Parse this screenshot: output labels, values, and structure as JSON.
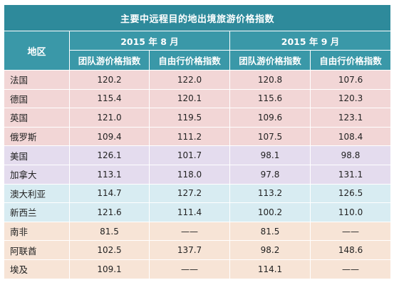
{
  "title": "主要中远程目的地出境旅游价格指数",
  "region_header": "地区",
  "periods": [
    {
      "label": "2015 年 8 月"
    },
    {
      "label": "2015 年 9 月"
    }
  ],
  "subheaders": [
    "团队游价格指数",
    "自由行价格指数",
    "团队游价格指数",
    "自由行价格指数"
  ],
  "group_colors": [
    "#f2d6d6",
    "#e4dcee",
    "#d8ecf2",
    "#f7e4d6"
  ],
  "rows": [
    {
      "region": "法国",
      "group": 0,
      "v": [
        "120.2",
        "122.0",
        "120.8",
        "107.6"
      ]
    },
    {
      "region": "德国",
      "group": 0,
      "v": [
        "115.4",
        "120.1",
        "115.6",
        "120.3"
      ]
    },
    {
      "region": "英国",
      "group": 0,
      "v": [
        "121.0",
        "119.5",
        "109.6",
        "123.1"
      ]
    },
    {
      "region": "俄罗斯",
      "group": 0,
      "v": [
        "109.4",
        "111.2",
        "107.5",
        "108.4"
      ]
    },
    {
      "region": "美国",
      "group": 1,
      "v": [
        "126.1",
        "101.7",
        "98.1",
        "98.8"
      ]
    },
    {
      "region": "加拿大",
      "group": 1,
      "v": [
        "113.1",
        "118.0",
        "97.8",
        "131.1"
      ]
    },
    {
      "region": "澳大利亚",
      "group": 2,
      "v": [
        "114.7",
        "127.2",
        "113.2",
        "126.5"
      ]
    },
    {
      "region": "新西兰",
      "group": 2,
      "v": [
        "121.6",
        "111.4",
        "100.2",
        "110.0"
      ]
    },
    {
      "region": "南非",
      "group": 3,
      "v": [
        "81.5",
        "——",
        "81.5",
        "——"
      ]
    },
    {
      "region": "阿联酋",
      "group": 3,
      "v": [
        "102.5",
        "137.7",
        "98.2",
        "148.6"
      ]
    },
    {
      "region": "埃及",
      "group": 3,
      "v": [
        "109.1",
        "——",
        "114.1",
        "——"
      ]
    }
  ],
  "chart_data": {
    "type": "table",
    "title": "主要中远程目的地出境旅游价格指数",
    "columns": [
      "地区",
      "2015 年 8 月 团队游价格指数",
      "2015 年 8 月 自由行价格指数",
      "2015 年 9 月 团队游价格指数",
      "2015 年 9 月 自由行价格指数"
    ],
    "rows": [
      [
        "法国",
        120.2,
        122.0,
        120.8,
        107.6
      ],
      [
        "德国",
        115.4,
        120.1,
        115.6,
        120.3
      ],
      [
        "英国",
        121.0,
        119.5,
        109.6,
        123.1
      ],
      [
        "俄罗斯",
        109.4,
        111.2,
        107.5,
        108.4
      ],
      [
        "美国",
        126.1,
        101.7,
        98.1,
        98.8
      ],
      [
        "加拿大",
        113.1,
        118.0,
        97.8,
        131.1
      ],
      [
        "澳大利亚",
        114.7,
        127.2,
        113.2,
        126.5
      ],
      [
        "新西兰",
        121.6,
        111.4,
        100.2,
        110.0
      ],
      [
        "南非",
        81.5,
        null,
        81.5,
        null
      ],
      [
        "阿联酋",
        102.5,
        137.7,
        98.2,
        148.6
      ],
      [
        "埃及",
        109.1,
        null,
        114.1,
        null
      ]
    ]
  }
}
